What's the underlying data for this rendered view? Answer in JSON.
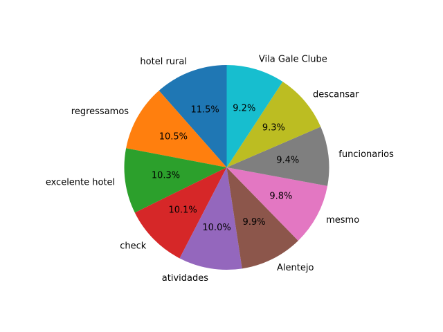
{
  "chart_data": {
    "type": "pie",
    "title": "",
    "start_angle_deg": 90,
    "direction": "counterclockwise",
    "slices": [
      {
        "label": "hotel rural",
        "value": 11.5,
        "pct_label": "11.5%",
        "color": "#1f77b4"
      },
      {
        "label": "regressamos",
        "value": 10.5,
        "pct_label": "10.5%",
        "color": "#ff7f0e"
      },
      {
        "label": "excelente hotel",
        "value": 10.3,
        "pct_label": "10.3%",
        "color": "#2ca02c"
      },
      {
        "label": "check",
        "value": 10.1,
        "pct_label": "10.1%",
        "color": "#d62728"
      },
      {
        "label": "atividades",
        "value": 10.0,
        "pct_label": "10.0%",
        "color": "#9467bd"
      },
      {
        "label": "Alentejo",
        "value": 9.9,
        "pct_label": "9.9%",
        "color": "#8c564b"
      },
      {
        "label": "mesmo",
        "value": 9.8,
        "pct_label": "9.8%",
        "color": "#e377c2"
      },
      {
        "label": "funcionarios",
        "value": 9.4,
        "pct_label": "9.4%",
        "color": "#7f7f7f"
      },
      {
        "label": "descansar",
        "value": 9.3,
        "pct_label": "9.3%",
        "color": "#bcbd22"
      },
      {
        "label": "Vila Gale Clube",
        "value": 9.2,
        "pct_label": "9.2%",
        "color": "#17becf"
      }
    ]
  }
}
